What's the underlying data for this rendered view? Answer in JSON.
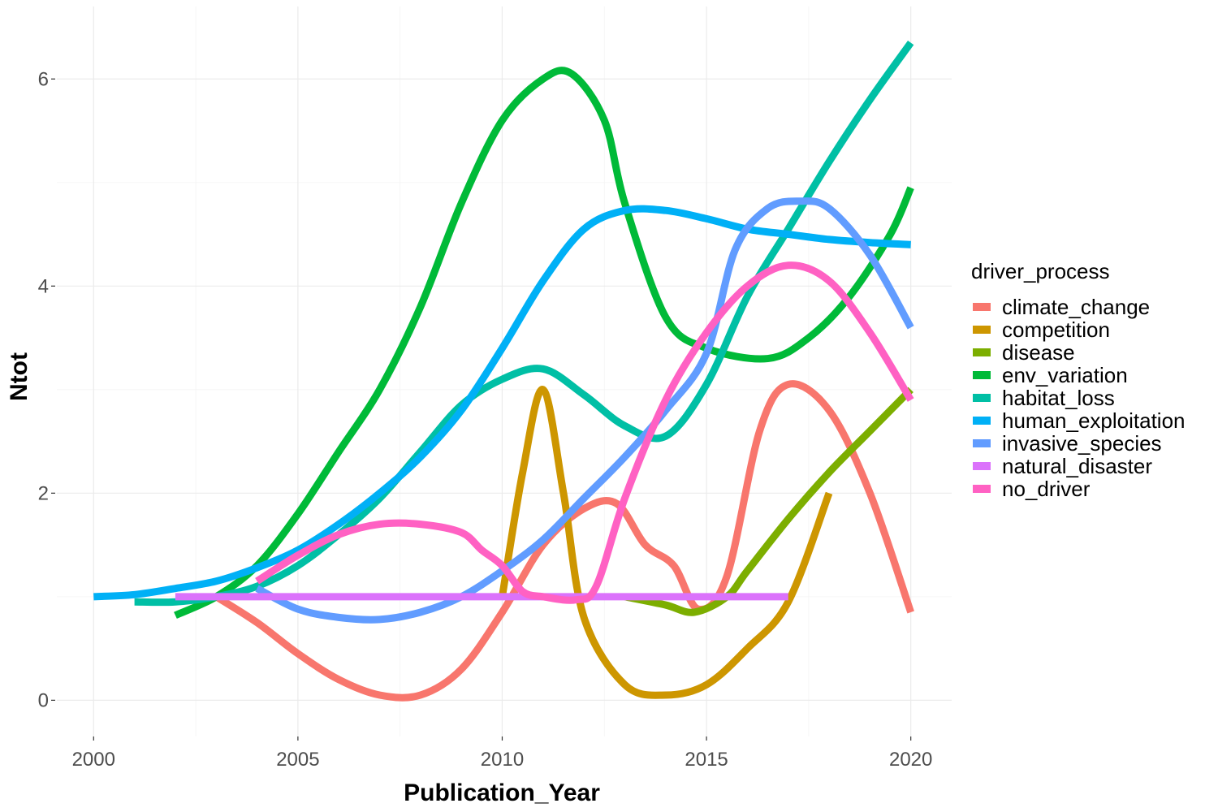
{
  "chart_data": {
    "type": "line",
    "xlabel": "Publication_Year",
    "ylabel": "Ntot",
    "xlim": [
      1999.1,
      2021.0
    ],
    "ylim": [
      -0.35,
      6.7
    ],
    "x_ticks": [
      2000,
      2005,
      2010,
      2015,
      2020
    ],
    "y_ticks": [
      0,
      2,
      4,
      6
    ],
    "grid": true,
    "legend": {
      "title": "driver_process",
      "placement": "right"
    },
    "series": [
      {
        "name": "climate_change",
        "color": "#F8766D",
        "x": [
          2003,
          2004,
          2005,
          2006,
          2007,
          2008,
          2009,
          2010,
          2011,
          2012,
          2012.8,
          2013.5,
          2014.2,
          2014.8,
          2015.5,
          2016.3,
          2017,
          2018,
          2019,
          2020
        ],
        "y": [
          1.0,
          0.75,
          0.45,
          0.2,
          0.05,
          0.05,
          0.3,
          0.85,
          1.5,
          1.85,
          1.9,
          1.5,
          1.3,
          0.88,
          1.2,
          2.6,
          3.05,
          2.8,
          2.0,
          0.85
        ]
      },
      {
        "name": "competition",
        "color": "#CD9600",
        "x": [
          2010,
          2010.5,
          2011,
          2011.5,
          2012,
          2013,
          2014,
          2015,
          2016,
          2017,
          2018
        ],
        "y": [
          1.0,
          2.2,
          3.0,
          2.0,
          0.8,
          0.15,
          0.05,
          0.15,
          0.5,
          0.95,
          2.0
        ]
      },
      {
        "name": "disease",
        "color": "#7CAE00",
        "x": [
          2013,
          2014,
          2014.7,
          2015.5,
          2016,
          2017,
          2018,
          2019,
          2020
        ],
        "y": [
          1.0,
          0.92,
          0.85,
          1.0,
          1.25,
          1.75,
          2.2,
          2.6,
          3.0
        ]
      },
      {
        "name": "env_variation",
        "color": "#00BA38",
        "x": [
          2002,
          2003,
          2004,
          2005,
          2006,
          2007,
          2008,
          2009,
          2010,
          2011,
          2011.7,
          2012.5,
          2013,
          2014,
          2015,
          2016.5,
          2017.5,
          2018.5,
          2019.5,
          2020
        ],
        "y": [
          0.82,
          1.0,
          1.3,
          1.8,
          2.4,
          3.0,
          3.8,
          4.8,
          5.6,
          6.0,
          6.05,
          5.6,
          4.8,
          3.7,
          3.4,
          3.3,
          3.5,
          3.9,
          4.5,
          4.95
        ]
      },
      {
        "name": "habitat_loss",
        "color": "#00BFA5",
        "x": [
          2001,
          2002,
          2003,
          2004,
          2005,
          2006,
          2007,
          2008,
          2009,
          2010,
          2011,
          2012,
          2013,
          2014,
          2015,
          2016,
          2017,
          2018,
          2019,
          2020
        ],
        "y": [
          0.95,
          0.95,
          1.0,
          1.1,
          1.3,
          1.6,
          1.95,
          2.4,
          2.85,
          3.1,
          3.2,
          2.95,
          2.65,
          2.55,
          3.05,
          3.9,
          4.55,
          5.2,
          5.8,
          6.35
        ]
      },
      {
        "name": "human_exploitation",
        "color": "#00B0F6",
        "x": [
          2000,
          2001,
          2002,
          2003,
          2004,
          2005,
          2006,
          2007,
          2008,
          2009,
          2010,
          2011,
          2012,
          2013,
          2014,
          2015,
          2016,
          2017,
          2018,
          2019,
          2020
        ],
        "y": [
          1.0,
          1.02,
          1.08,
          1.15,
          1.28,
          1.45,
          1.7,
          2.0,
          2.35,
          2.8,
          3.4,
          4.05,
          4.55,
          4.73,
          4.73,
          4.65,
          4.55,
          4.5,
          4.45,
          4.42,
          4.4
        ]
      },
      {
        "name": "invasive_species",
        "color": "#619CFF",
        "x": [
          2004,
          2005,
          2006,
          2007,
          2008,
          2009,
          2010,
          2011,
          2012,
          2013,
          2014,
          2015,
          2015.7,
          2016.5,
          2017.3,
          2018,
          2019,
          2020
        ],
        "y": [
          1.08,
          0.88,
          0.8,
          0.78,
          0.85,
          1.0,
          1.25,
          1.55,
          1.95,
          2.35,
          2.8,
          3.35,
          4.35,
          4.75,
          4.82,
          4.75,
          4.3,
          3.6
        ]
      },
      {
        "name": "natural_disaster",
        "color": "#DB72FB",
        "x": [
          2002,
          2017
        ],
        "y": [
          1.0,
          1.0
        ]
      },
      {
        "name": "no_driver",
        "color": "#FF61C3",
        "x": [
          2004,
          2005,
          2006,
          2007,
          2008,
          2009,
          2009.5,
          2010,
          2010.5,
          2011,
          2011.8,
          2012.3,
          2013,
          2014,
          2015,
          2016,
          2017,
          2018,
          2019,
          2020
        ],
        "y": [
          1.15,
          1.4,
          1.6,
          1.7,
          1.7,
          1.62,
          1.45,
          1.3,
          1.05,
          1.0,
          0.97,
          1.1,
          1.95,
          2.9,
          3.55,
          4.0,
          4.2,
          4.05,
          3.55,
          2.9
        ]
      }
    ]
  }
}
